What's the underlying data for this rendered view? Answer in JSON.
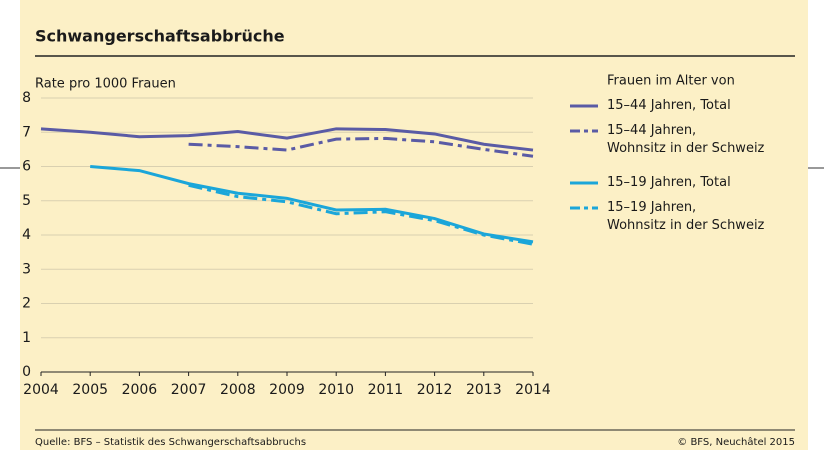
{
  "chart_data": {
    "type": "line",
    "title": "Schwangerschaftsabbrüche",
    "y_label": "Rate pro 1000 Frauen",
    "legend_title": "Frauen im Alter von",
    "source": "Quelle: BFS – Statistik des Schwangerschaftsabbruchs",
    "copyright": "© BFS, Neuchâtel 2015",
    "x": [
      2004,
      2005,
      2006,
      2007,
      2008,
      2009,
      2010,
      2011,
      2012,
      2013,
      2014
    ],
    "xlim": [
      2004,
      2014
    ],
    "xticks": [
      2004,
      2005,
      2006,
      2007,
      2008,
      2009,
      2010,
      2011,
      2012,
      2013,
      2014
    ],
    "ylim": [
      0,
      8
    ],
    "yticks": [
      0,
      1,
      2,
      3,
      4,
      5,
      6,
      7,
      8
    ],
    "grid": true,
    "legend": "right",
    "series": [
      {
        "name": "15–44 Jahren, Total",
        "color": "#5a5ba5",
        "style": "solid",
        "values": [
          7.1,
          7.0,
          6.87,
          6.9,
          7.02,
          6.83,
          7.1,
          7.08,
          6.95,
          6.65,
          6.48
        ]
      },
      {
        "name": "15–44 Jahren,\nWohnsitz in der Schweiz",
        "color": "#5a5ba5",
        "style": "dashdot",
        "values": [
          null,
          null,
          null,
          6.65,
          6.58,
          6.48,
          6.8,
          6.82,
          6.72,
          6.5,
          6.3
        ]
      },
      {
        "name": "15–19 Jahren, Total",
        "color": "#1ba6d9",
        "style": "solid",
        "values": [
          null,
          6.0,
          5.88,
          5.5,
          5.22,
          5.07,
          4.73,
          4.75,
          4.48,
          4.03,
          3.8
        ]
      },
      {
        "name": "15–19 Jahren,\nWohnsitz in der Schweiz",
        "color": "#1ba6d9",
        "style": "dashdot",
        "values": [
          null,
          null,
          null,
          5.45,
          5.12,
          4.97,
          4.62,
          4.68,
          4.42,
          4.0,
          3.73
        ]
      }
    ]
  }
}
